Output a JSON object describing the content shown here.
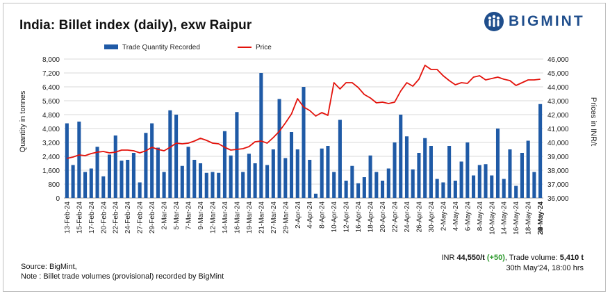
{
  "header": {
    "title": "India: Billet index (daily), exw Raipur",
    "brand": "BIGMINT"
  },
  "notes": {
    "source": "Source: BigMint,",
    "note": "Note : Billet trade volumes (provisional) recorded by BigMint"
  },
  "footer": {
    "price_prefix": "INR ",
    "price_value": "44,550/t",
    "change": "(+50)",
    "volume_prefix": ", Trade volume: ",
    "volume_value": "5,410 t",
    "timestamp": "30th May'24, 18:00 hrs"
  },
  "colors": {
    "bar": "#1f5aa6",
    "line": "#e3120b",
    "grid": "#d9d9d9",
    "positive": "#2e9a2e",
    "brand": "#1f4e8c"
  },
  "chart_data": {
    "type": "bar+line",
    "ylabel": "Quantity in tonnes",
    "y2label": "Prices in INR/t",
    "ylim": [
      0,
      8000
    ],
    "y2lim": [
      36000,
      46000
    ],
    "yticks": [
      "0",
      "800",
      "1,600",
      "2,400",
      "3,200",
      "4,000",
      "4,800",
      "5,600",
      "6,400",
      "7,200",
      "8,000"
    ],
    "y2ticks": [
      "36,000",
      "37,000",
      "38,000",
      "39,000",
      "40,000",
      "41,000",
      "42,000",
      "43,000",
      "44,000",
      "45,000",
      "46,000"
    ],
    "legend": [
      "Trade Quantity Recorded",
      "Price"
    ],
    "xtick_labels": [
      "13-Feb-24",
      "15-Feb-24",
      "17-Feb-24",
      "20-Feb-24",
      "22-Feb-24",
      "24-Feb-24",
      "27-Feb-24",
      "29-Feb-24",
      "2-Mar-24",
      "5-Mar-24",
      "7-Mar-24",
      "9-Mar-24",
      "12-Mar-24",
      "14-Mar-24",
      "16-Mar-24",
      "19-Mar-24",
      "21-Mar-24",
      "27-Mar-24",
      "29-Mar-24",
      "2-Apr-24",
      "4-Apr-24",
      "8-Apr-24",
      "10-Apr-24",
      "12-Apr-24",
      "16-Apr-24",
      "18-Apr-24",
      "20-Apr-24",
      "22-Apr-24",
      "24-Apr-24",
      "26-Apr-24",
      "30-Apr-24",
      "2-May-24",
      "4-May-24",
      "6-May-24",
      "8-May-24",
      "10-May-24",
      "14-May-24",
      "16-May-24",
      "18-May-24",
      "20-May-24",
      "22-May-24",
      "24-May-24",
      "28-May-24",
      "30-May-24"
    ],
    "volumes": [
      4300,
      1900,
      4400,
      1500,
      1700,
      2950,
      1250,
      2500,
      3600,
      2150,
      2200,
      2600,
      900,
      3750,
      4300,
      2900,
      1500,
      5050,
      4800,
      1850,
      2950,
      2200,
      2000,
      1450,
      1500,
      1450,
      3850,
      2450,
      4950,
      1500,
      2550,
      2000,
      7200,
      1900,
      2800,
      5700,
      2300,
      3800,
      2800,
      6400,
      2200,
      250,
      2850,
      3000,
      1500,
      4500,
      1000,
      1850,
      850,
      1200,
      2450,
      1500,
      1000,
      1700,
      3200,
      4800,
      3550,
      1650,
      2600,
      3450,
      3000,
      1100,
      900,
      3000,
      1000,
      2100,
      3200,
      1300,
      1900,
      1950,
      1300,
      4000,
      1100,
      2800,
      700,
      2600,
      3300,
      1500,
      5410
    ],
    "prices": [
      38850,
      38950,
      39100,
      39050,
      39200,
      39300,
      39350,
      39250,
      39300,
      39450,
      39450,
      39400,
      39250,
      39400,
      39650,
      39500,
      39400,
      39650,
      39950,
      39900,
      39950,
      40100,
      40300,
      40150,
      39950,
      39900,
      39650,
      39450,
      39500,
      39550,
      39700,
      40050,
      40100,
      39950,
      40350,
      40800,
      41400,
      42050,
      43150,
      42550,
      42300,
      41900,
      42150,
      41950,
      44300,
      43850,
      44300,
      44300,
      43950,
      43450,
      43200,
      42850,
      42900,
      42800,
      42900,
      43700,
      44300,
      44050,
      44550,
      45550,
      45250,
      45250,
      44800,
      44450,
      44150,
      44300,
      44250,
      44700,
      44800,
      44500,
      44600,
      44700,
      44550,
      44450,
      44100,
      44300,
      44500,
      44500,
      44550
    ]
  }
}
